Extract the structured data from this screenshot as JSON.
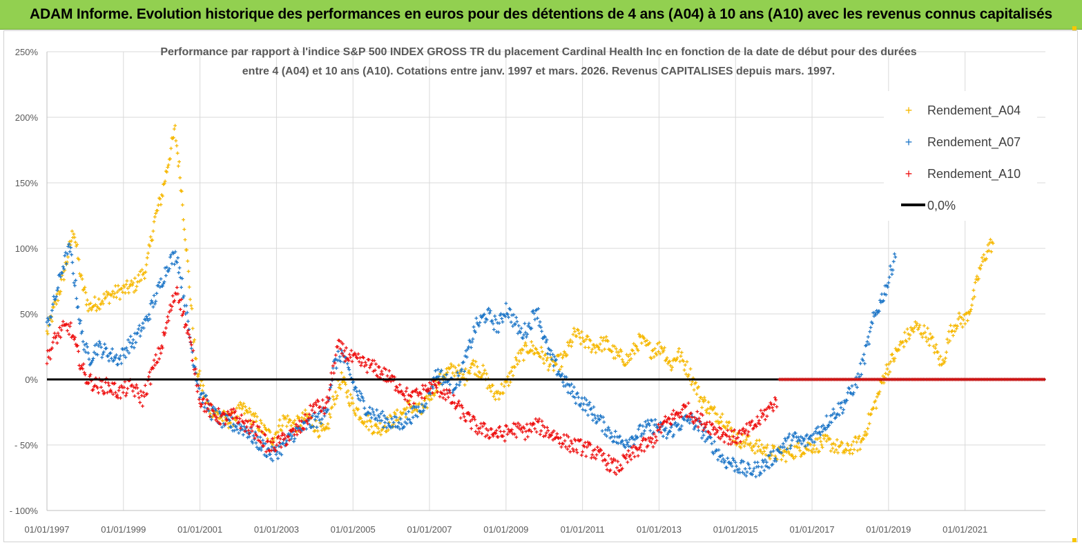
{
  "header": {
    "title": "ADAM Informe. Evolution historique des performances en euros pour des détentions de 4 ans (A04) à 10 ans (A10) avec les revenus connus capitalisés"
  },
  "colors": {
    "banner": "#92d050",
    "A04": "#f6b800",
    "A07": "#1f77c8",
    "A10": "#ee1111",
    "zero": "#000000",
    "grid": "#d9d9d9"
  },
  "chart_data": {
    "type": "scatter",
    "title_lines": [
      "Performance par rapport à l'indice S&P 500 INDEX GROSS TR  du placement Cardinal Health Inc en fonction de la date de début pour des durées",
      "entre 4 (A04) et 10 ans (A10). Cotations entre janv. 1997 et mars. 2026. Revenus CAPITALISES depuis mars. 1997."
    ],
    "xlabel": "",
    "ylabel": "",
    "xlim": [
      1997.0,
      2023.1
    ],
    "ylim": [
      -100,
      250
    ],
    "x_ticks": [
      1997,
      1999,
      2001,
      2003,
      2005,
      2007,
      2009,
      2011,
      2013,
      2015,
      2017,
      2019,
      2021
    ],
    "x_tick_labels": [
      "01/01/1997",
      "01/01/1999",
      "01/01/2001",
      "01/01/2003",
      "01/01/2005",
      "01/01/2007",
      "01/01/2009",
      "01/01/2011",
      "01/01/2013",
      "01/01/2015",
      "01/01/2017",
      "01/01/2019",
      "01/01/2021"
    ],
    "y_ticks": [
      -100,
      -50,
      0,
      50,
      100,
      150,
      200,
      250
    ],
    "y_tick_labels": [
      "- 100%",
      "- 50%",
      "0%",
      "50%",
      "100%",
      "150%",
      "200%",
      "250%"
    ],
    "grid": true,
    "legend_position": "top-right",
    "series": [
      {
        "name": "Rendement_A04",
        "marker": "+",
        "x": [
          1997.0,
          1997.2,
          1997.4,
          1997.55,
          1997.7,
          1997.9,
          1998.1,
          1998.4,
          1998.7,
          1999.0,
          1999.3,
          1999.6,
          1999.8,
          2000.0,
          2000.2,
          2000.35,
          2000.5,
          2000.7,
          2000.9,
          2001.2,
          2001.5,
          2001.8,
          2002.1,
          2002.4,
          2002.7,
          2002.9,
          2003.2,
          2003.5,
          2003.8,
          2004.1,
          2004.3,
          2004.5,
          2004.7,
          2004.85,
          2005.0,
          2005.3,
          2005.6,
          2005.9,
          2006.2,
          2006.5,
          2006.8,
          2007.1,
          2007.4,
          2007.7,
          2007.9,
          2008.1,
          2008.4,
          2008.7,
          2009.0,
          2009.3,
          2009.6,
          2009.9,
          2010.2,
          2010.5,
          2010.8,
          2011.0,
          2011.3,
          2011.6,
          2011.9,
          2012.2,
          2012.5,
          2012.8,
          2013.1,
          2013.3,
          2013.5,
          2013.8,
          2014.1,
          2014.4,
          2014.7,
          2015.0,
          2015.3,
          2015.6,
          2015.9,
          2016.2,
          2016.5,
          2016.8,
          2017.1,
          2017.4,
          2017.7,
          2017.9,
          2018.1,
          2018.3,
          2018.5,
          2018.7,
          2018.9,
          2019.1,
          2019.4,
          2019.7,
          2020.0,
          2020.2,
          2020.4,
          2020.6,
          2020.8,
          2021.0,
          2021.2,
          2021.4,
          2021.6,
          2021.75
        ],
        "y": [
          35,
          55,
          75,
          95,
          115,
          75,
          55,
          60,
          65,
          68,
          72,
          85,
          120,
          140,
          170,
          190,
          150,
          80,
          10,
          -20,
          -28,
          -32,
          -22,
          -30,
          -40,
          -45,
          -30,
          -35,
          -28,
          -38,
          -42,
          -15,
          0,
          -10,
          -20,
          -30,
          -38,
          -34,
          -28,
          -20,
          -25,
          -8,
          5,
          8,
          0,
          12,
          5,
          -12,
          -5,
          15,
          25,
          20,
          10,
          15,
          35,
          30,
          25,
          28,
          18,
          15,
          30,
          22,
          25,
          10,
          20,
          5,
          -15,
          -25,
          -30,
          -45,
          -48,
          -52,
          -55,
          -58,
          -55,
          -52,
          -50,
          -48,
          -52,
          -55,
          -50,
          -48,
          -30,
          -15,
          5,
          15,
          30,
          40,
          35,
          25,
          10,
          35,
          45,
          45,
          60,
          85,
          100,
          105
        ]
      },
      {
        "name": "Rendement_A07",
        "marker": "+",
        "x": [
          1997.0,
          1997.2,
          1997.4,
          1997.6,
          1997.75,
          1997.9,
          1998.1,
          1998.3,
          1998.6,
          1998.9,
          1999.1,
          1999.3,
          1999.6,
          1999.8,
          2000.0,
          2000.2,
          2000.4,
          2000.6,
          2000.8,
          2001.0,
          2001.3,
          2001.6,
          2001.9,
          2002.2,
          2002.4,
          2002.6,
          2002.9,
          2003.2,
          2003.5,
          2003.8,
          2004.1,
          2004.3,
          2004.5,
          2004.7,
          2004.9,
          2005.1,
          2005.3,
          2005.6,
          2005.9,
          2006.2,
          2006.5,
          2006.8,
          2007.0,
          2007.2,
          2007.4,
          2007.6,
          2007.8,
          2008.0,
          2008.2,
          2008.5,
          2008.8,
          2009.0,
          2009.2,
          2009.4,
          2009.6,
          2009.8,
          2010.0,
          2010.2,
          2010.4,
          2010.6,
          2010.8,
          2011.1,
          2011.4,
          2011.7,
          2012.0,
          2012.3,
          2012.6,
          2012.9,
          2013.2,
          2013.5,
          2013.8,
          2014.1,
          2014.4,
          2014.7,
          2015.0,
          2015.3,
          2015.6,
          2015.9,
          2016.2,
          2016.5,
          2016.8,
          2017.0,
          2017.2,
          2017.4,
          2017.6,
          2017.8,
          2018.0,
          2018.2,
          2018.4,
          2018.6,
          2018.8,
          2019.0,
          2019.2
        ],
        "y": [
          40,
          60,
          85,
          100,
          70,
          35,
          15,
          25,
          20,
          15,
          25,
          30,
          45,
          60,
          75,
          90,
          95,
          60,
          20,
          -10,
          -25,
          -32,
          -35,
          -38,
          -45,
          -50,
          -58,
          -50,
          -40,
          -35,
          -30,
          -25,
          10,
          20,
          5,
          -10,
          -20,
          -28,
          -32,
          -35,
          -28,
          -22,
          -8,
          5,
          0,
          -5,
          2,
          20,
          40,
          50,
          40,
          55,
          45,
          35,
          40,
          55,
          30,
          15,
          5,
          -5,
          -12,
          -20,
          -30,
          -40,
          -48,
          -45,
          -38,
          -35,
          -42,
          -35,
          -30,
          -38,
          -50,
          -62,
          -65,
          -70,
          -68,
          -62,
          -52,
          -45,
          -48,
          -44,
          -38,
          -32,
          -25,
          -20,
          -10,
          0,
          20,
          45,
          60,
          75,
          100
        ]
      },
      {
        "name": "Rendement_A10",
        "marker": "+",
        "x": [
          1997.0,
          1997.2,
          1997.4,
          1997.6,
          1997.8,
          1998.0,
          1998.3,
          1998.6,
          1998.9,
          1999.2,
          1999.5,
          1999.8,
          2000.0,
          2000.2,
          2000.4,
          2000.6,
          2000.8,
          2001.0,
          2001.3,
          2001.6,
          2001.9,
          2002.2,
          2002.5,
          2002.8,
          2003.1,
          2003.4,
          2003.7,
          2004.0,
          2004.3,
          2004.5,
          2004.6,
          2004.8,
          2005.0,
          2005.3,
          2005.6,
          2005.9,
          2006.2,
          2006.5,
          2006.8,
          2007.1,
          2007.4,
          2007.7,
          2008.0,
          2008.3,
          2008.6,
          2008.9,
          2009.2,
          2009.5,
          2009.8,
          2010.1,
          2010.4,
          2010.7,
          2011.0,
          2011.3,
          2011.6,
          2011.9,
          2012.2,
          2012.5,
          2012.8,
          2013.1,
          2013.4,
          2013.7,
          2014.0,
          2014.3,
          2014.6,
          2014.9,
          2015.2,
          2015.5,
          2015.8,
          2016.1
        ],
        "y": [
          15,
          30,
          38,
          40,
          20,
          2,
          -5,
          -5,
          -10,
          -5,
          -15,
          10,
          25,
          50,
          70,
          45,
          20,
          -15,
          -25,
          -30,
          -28,
          -35,
          -40,
          -52,
          -48,
          -42,
          -35,
          -20,
          -22,
          10,
          25,
          20,
          15,
          12,
          8,
          2,
          -5,
          -15,
          -10,
          -5,
          -10,
          -20,
          -30,
          -38,
          -40,
          -42,
          -38,
          -40,
          -35,
          -40,
          -45,
          -50,
          -52,
          -55,
          -62,
          -68,
          -60,
          -52,
          -48,
          -35,
          -28,
          -22,
          -30,
          -35,
          -40,
          -45,
          -42,
          -35,
          -25,
          -15
        ]
      },
      {
        "name": "0,0%",
        "type": "line",
        "x": [
          1997.0,
          2023.1
        ],
        "y": [
          0,
          0
        ]
      }
    ],
    "annotations": []
  }
}
